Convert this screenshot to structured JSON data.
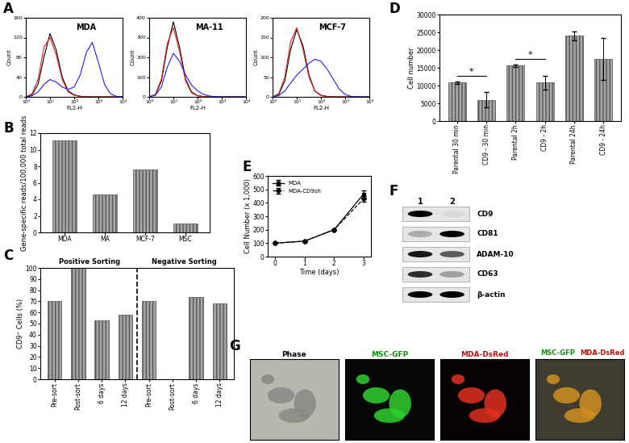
{
  "chart_data": [
    {
      "type": "line",
      "panel_label": "A",
      "title": "MDA",
      "xlabel": "FL2-H",
      "ylabel": "Count",
      "log": "x",
      "x": [
        1,
        1.8,
        3.2,
        5.6,
        10,
        18,
        32,
        56,
        100,
        180,
        320,
        560,
        1000,
        1800,
        3200,
        5600,
        10000
      ],
      "xlim": [
        1,
        10000
      ],
      "xticks": [
        {
          "value": 1,
          "label": "10⁰"
        },
        {
          "value": 10,
          "label": "10¹"
        },
        {
          "value": 100,
          "label": "10²"
        },
        {
          "value": 1000,
          "label": "10³"
        },
        {
          "value": 10000,
          "label": "10⁴"
        }
      ],
      "ylim": [
        0,
        160
      ],
      "yticks": [
        0,
        40,
        80,
        120,
        160
      ],
      "series": [
        {
          "color": "#000000",
          "values": [
            0,
            4,
            25,
            80,
            128,
            95,
            40,
            12,
            4,
            1,
            0,
            0,
            0,
            0,
            0,
            0,
            0
          ]
        },
        {
          "color": "#e02020",
          "values": [
            0,
            6,
            35,
            100,
            120,
            85,
            35,
            10,
            3,
            1,
            0,
            0,
            0,
            0,
            0,
            0,
            0
          ]
        },
        {
          "color": "#2020e0",
          "values": [
            0,
            2,
            10,
            25,
            35,
            30,
            20,
            15,
            20,
            45,
            90,
            110,
            70,
            25,
            6,
            1,
            0
          ]
        }
      ]
    },
    {
      "type": "line",
      "title": "MA-11",
      "xlabel": "FL2-H",
      "ylabel": "Count",
      "log": "x",
      "x": [
        1,
        1.8,
        3.2,
        5.6,
        10,
        18,
        32,
        56,
        100,
        180,
        320,
        560,
        1000,
        1800,
        3200,
        5600,
        10000
      ],
      "xlim": [
        1,
        10000
      ],
      "xticks": [
        {
          "value": 1,
          "label": "10⁰"
        },
        {
          "value": 10,
          "label": "10¹"
        },
        {
          "value": 100,
          "label": "10²"
        },
        {
          "value": 1000,
          "label": "10³"
        },
        {
          "value": 10000,
          "label": "10⁴"
        }
      ],
      "ylim": [
        0,
        400
      ],
      "yticks": [
        0,
        100,
        200,
        300,
        400
      ],
      "series": [
        {
          "color": "#000000",
          "values": [
            0,
            10,
            80,
            250,
            380,
            250,
            90,
            25,
            6,
            1,
            0,
            0,
            0,
            0,
            0,
            0,
            0
          ]
        },
        {
          "color": "#e02020",
          "values": [
            0,
            12,
            90,
            270,
            350,
            230,
            80,
            20,
            5,
            1,
            0,
            0,
            0,
            0,
            0,
            0,
            0
          ]
        },
        {
          "color": "#2020e0",
          "values": [
            0,
            8,
            50,
            150,
            220,
            180,
            110,
            60,
            30,
            12,
            4,
            1,
            0,
            0,
            0,
            0,
            0
          ]
        }
      ]
    },
    {
      "type": "line",
      "title": "MCF-7",
      "xlabel": "FL2-H",
      "ylabel": "Count",
      "log": "x",
      "x": [
        1,
        1.8,
        3.2,
        5.6,
        10,
        18,
        32,
        56,
        100,
        180,
        320,
        560,
        1000,
        1800,
        3200,
        5600,
        10000
      ],
      "xlim": [
        1,
        10000
      ],
      "xticks": [
        {
          "value": 1,
          "label": "10⁰"
        },
        {
          "value": 10,
          "label": "10¹"
        },
        {
          "value": 100,
          "label": "10²"
        },
        {
          "value": 1000,
          "label": "10³"
        },
        {
          "value": 10000,
          "label": "10⁴"
        }
      ],
      "ylim": [
        0,
        200
      ],
      "yticks": [
        0,
        50,
        100,
        150,
        200
      ],
      "series": [
        {
          "color": "#000000",
          "values": [
            0,
            6,
            40,
            120,
            170,
            130,
            55,
            15,
            4,
            1,
            0,
            0,
            0,
            0,
            0,
            0,
            0
          ]
        },
        {
          "color": "#e02020",
          "values": [
            0,
            8,
            50,
            140,
            175,
            120,
            50,
            14,
            3,
            1,
            0,
            0,
            0,
            0,
            0,
            0,
            0
          ]
        },
        {
          "color": "#2020e0",
          "values": [
            0,
            3,
            15,
            35,
            55,
            70,
            85,
            95,
            90,
            70,
            45,
            20,
            6,
            1,
            0,
            0,
            0
          ]
        }
      ]
    },
    {
      "type": "bar",
      "panel_label": "B",
      "ylabel": "Gene-specific reads/100,000 total reads",
      "categories": [
        "MDA",
        "MA",
        "MCF-7",
        "MSC"
      ],
      "values": [
        11.1,
        4.6,
        7.6,
        1.1
      ],
      "color": "#a6a6a6",
      "ylim": [
        0,
        12
      ],
      "yticks": [
        0,
        2,
        4,
        6,
        8,
        10,
        12
      ]
    },
    {
      "type": "bar",
      "panel_label": "C",
      "ylabel": "CD9⁺ Cells (%)",
      "categories": [
        "Pre-sort",
        "Post-sort",
        "6 days",
        "12 days",
        "Pre-sort",
        "Post-sort",
        "6 days",
        "12 days"
      ],
      "values": [
        70,
        100,
        53,
        58,
        70,
        0,
        74,
        68
      ],
      "color": "#a6a6a6",
      "ylim": [
        0,
        100
      ],
      "yticks": [
        0,
        10,
        20,
        30,
        40,
        50,
        60,
        70,
        80,
        90,
        100
      ],
      "annotations": [
        {
          "text": "Positive Sorting",
          "span": [
            0,
            3
          ]
        },
        {
          "text": "Negative Sorting",
          "span": [
            4,
            7
          ]
        }
      ]
    },
    {
      "type": "bar",
      "panel_label": "D",
      "ylabel": "Cell number",
      "categories": [
        "Parental 30 min",
        "CD9 - 30 min",
        "Parental 2h",
        "CD9 - 2h",
        "Parental 24h",
        "CD9 - 24h"
      ],
      "values": [
        10800,
        6000,
        15600,
        10800,
        24000,
        17500
      ],
      "errors": [
        400,
        2200,
        300,
        2000,
        1200,
        6000
      ],
      "color": "#a6a6a6",
      "ylim": [
        0,
        30000
      ],
      "yticks": [
        0,
        5000,
        10000,
        15000,
        20000,
        25000,
        30000
      ],
      "annotations": [
        {
          "text": "*",
          "between": [
            0,
            1
          ]
        },
        {
          "text": "*",
          "between": [
            2,
            3
          ]
        }
      ]
    },
    {
      "type": "line",
      "panel_label": "E",
      "xlabel": "Time (days)",
      "ylabel": "Cell Number (x 1,000)",
      "x": [
        0,
        1,
        2,
        3
      ],
      "xlim": [
        -0.25,
        3.25
      ],
      "xticks": [
        0,
        1,
        2,
        3
      ],
      "ylim": [
        0,
        600
      ],
      "yticks": [
        0,
        100,
        200,
        300,
        400,
        500,
        600
      ],
      "legend": "upper left",
      "series": [
        {
          "name": "MDA",
          "color": "#000000",
          "marker": "square",
          "line_style": "solid",
          "values": [
            100,
            115,
            200,
            465
          ],
          "errors": [
            0,
            0,
            0,
            25
          ]
        },
        {
          "name": "MDA-CD9sh",
          "color": "#000000",
          "marker": "diamond",
          "line_style": "dashed",
          "values": [
            100,
            115,
            200,
            430
          ],
          "errors": [
            0,
            0,
            0,
            20
          ]
        }
      ]
    }
  ],
  "blot": {
    "panel_label": "F",
    "lanes": [
      "1",
      "2"
    ],
    "rows": [
      {
        "name": "CD9",
        "values": [
          1.0,
          0.05
        ]
      },
      {
        "name": "CD81",
        "values": [
          0.25,
          1.0
        ]
      },
      {
        "name": "ADAM-10",
        "values": [
          0.9,
          0.6
        ]
      },
      {
        "name": "CD63",
        "values": [
          0.8,
          0.3
        ]
      },
      {
        "name": "β-actin",
        "values": [
          1.0,
          1.0
        ]
      }
    ]
  },
  "images": {
    "panel_label": "G",
    "titles": [
      "Phase",
      "MSC-GFP",
      "MDA-DsRed"
    ],
    "overlay_titles": [
      "MSC-GFP",
      "MDA-DsRed"
    ]
  }
}
